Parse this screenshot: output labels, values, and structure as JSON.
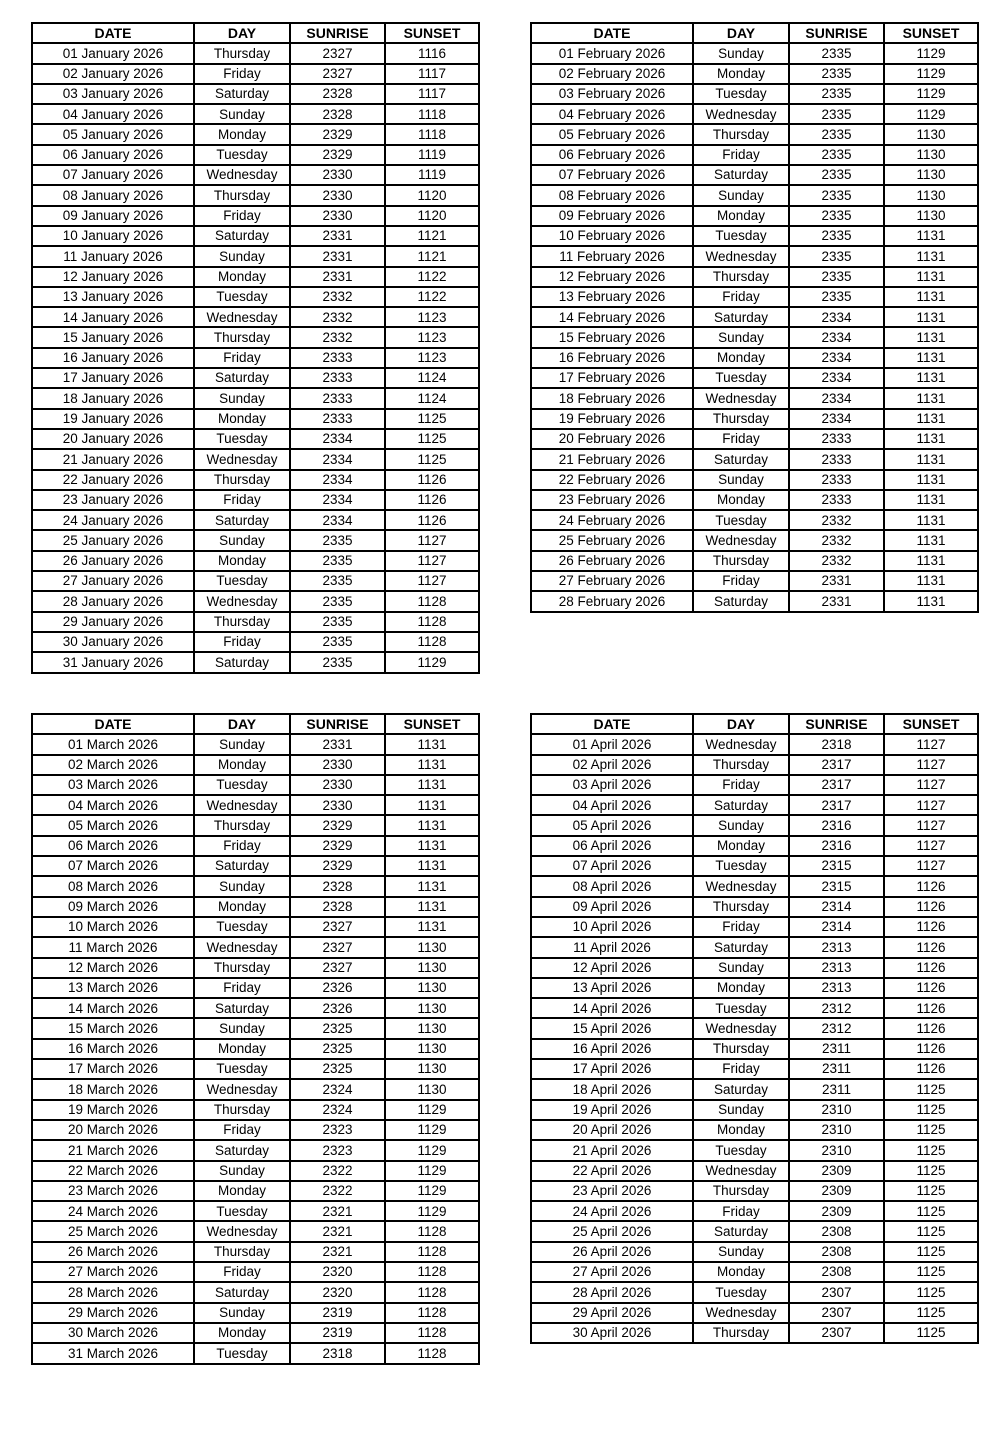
{
  "columns": [
    "DATE",
    "DAY",
    "SUNRISE",
    "SUNSET"
  ],
  "tables": [
    {
      "name": "january-2026",
      "rows": [
        [
          "01 January 2026",
          "Thursday",
          "2327",
          "1116"
        ],
        [
          "02 January 2026",
          "Friday",
          "2327",
          "1117"
        ],
        [
          "03 January 2026",
          "Saturday",
          "2328",
          "1117"
        ],
        [
          "04 January 2026",
          "Sunday",
          "2328",
          "1118"
        ],
        [
          "05 January 2026",
          "Monday",
          "2329",
          "1118"
        ],
        [
          "06 January 2026",
          "Tuesday",
          "2329",
          "1119"
        ],
        [
          "07 January 2026",
          "Wednesday",
          "2330",
          "1119"
        ],
        [
          "08 January 2026",
          "Thursday",
          "2330",
          "1120"
        ],
        [
          "09 January 2026",
          "Friday",
          "2330",
          "1120"
        ],
        [
          "10 January 2026",
          "Saturday",
          "2331",
          "1121"
        ],
        [
          "11 January 2026",
          "Sunday",
          "2331",
          "1121"
        ],
        [
          "12 January 2026",
          "Monday",
          "2331",
          "1122"
        ],
        [
          "13 January 2026",
          "Tuesday",
          "2332",
          "1122"
        ],
        [
          "14 January 2026",
          "Wednesday",
          "2332",
          "1123"
        ],
        [
          "15 January 2026",
          "Thursday",
          "2332",
          "1123"
        ],
        [
          "16 January 2026",
          "Friday",
          "2333",
          "1123"
        ],
        [
          "17 January 2026",
          "Saturday",
          "2333",
          "1124"
        ],
        [
          "18 January 2026",
          "Sunday",
          "2333",
          "1124"
        ],
        [
          "19 January 2026",
          "Monday",
          "2333",
          "1125"
        ],
        [
          "20 January 2026",
          "Tuesday",
          "2334",
          "1125"
        ],
        [
          "21 January 2026",
          "Wednesday",
          "2334",
          "1125"
        ],
        [
          "22 January 2026",
          "Thursday",
          "2334",
          "1126"
        ],
        [
          "23 January 2026",
          "Friday",
          "2334",
          "1126"
        ],
        [
          "24 January 2026",
          "Saturday",
          "2334",
          "1126"
        ],
        [
          "25 January 2026",
          "Sunday",
          "2335",
          "1127"
        ],
        [
          "26 January 2026",
          "Monday",
          "2335",
          "1127"
        ],
        [
          "27 January 2026",
          "Tuesday",
          "2335",
          "1127"
        ],
        [
          "28 January 2026",
          "Wednesday",
          "2335",
          "1128"
        ],
        [
          "29 January 2026",
          "Thursday",
          "2335",
          "1128"
        ],
        [
          "30 January 2026",
          "Friday",
          "2335",
          "1128"
        ],
        [
          "31 January 2026",
          "Saturday",
          "2335",
          "1129"
        ]
      ]
    },
    {
      "name": "february-2026",
      "rows": [
        [
          "01 February 2026",
          "Sunday",
          "2335",
          "1129"
        ],
        [
          "02 February 2026",
          "Monday",
          "2335",
          "1129"
        ],
        [
          "03 February 2026",
          "Tuesday",
          "2335",
          "1129"
        ],
        [
          "04 February 2026",
          "Wednesday",
          "2335",
          "1129"
        ],
        [
          "05 February 2026",
          "Thursday",
          "2335",
          "1130"
        ],
        [
          "06 February 2026",
          "Friday",
          "2335",
          "1130"
        ],
        [
          "07 February 2026",
          "Saturday",
          "2335",
          "1130"
        ],
        [
          "08 February 2026",
          "Sunday",
          "2335",
          "1130"
        ],
        [
          "09 February 2026",
          "Monday",
          "2335",
          "1130"
        ],
        [
          "10 February 2026",
          "Tuesday",
          "2335",
          "1131"
        ],
        [
          "11 February 2026",
          "Wednesday",
          "2335",
          "1131"
        ],
        [
          "12 February 2026",
          "Thursday",
          "2335",
          "1131"
        ],
        [
          "13 February 2026",
          "Friday",
          "2335",
          "1131"
        ],
        [
          "14 February 2026",
          "Saturday",
          "2334",
          "1131"
        ],
        [
          "15 February 2026",
          "Sunday",
          "2334",
          "1131"
        ],
        [
          "16 February 2026",
          "Monday",
          "2334",
          "1131"
        ],
        [
          "17 February 2026",
          "Tuesday",
          "2334",
          "1131"
        ],
        [
          "18 February 2026",
          "Wednesday",
          "2334",
          "1131"
        ],
        [
          "19 February 2026",
          "Thursday",
          "2334",
          "1131"
        ],
        [
          "20 February 2026",
          "Friday",
          "2333",
          "1131"
        ],
        [
          "21 February 2026",
          "Saturday",
          "2333",
          "1131"
        ],
        [
          "22 February 2026",
          "Sunday",
          "2333",
          "1131"
        ],
        [
          "23 February 2026",
          "Monday",
          "2333",
          "1131"
        ],
        [
          "24 February 2026",
          "Tuesday",
          "2332",
          "1131"
        ],
        [
          "25 February 2026",
          "Wednesday",
          "2332",
          "1131"
        ],
        [
          "26 February 2026",
          "Thursday",
          "2332",
          "1131"
        ],
        [
          "27 February 2026",
          "Friday",
          "2331",
          "1131"
        ],
        [
          "28 February 2026",
          "Saturday",
          "2331",
          "1131"
        ]
      ]
    },
    {
      "name": "march-2026",
      "rows": [
        [
          "01 March 2026",
          "Sunday",
          "2331",
          "1131"
        ],
        [
          "02 March 2026",
          "Monday",
          "2330",
          "1131"
        ],
        [
          "03 March 2026",
          "Tuesday",
          "2330",
          "1131"
        ],
        [
          "04 March 2026",
          "Wednesday",
          "2330",
          "1131"
        ],
        [
          "05 March 2026",
          "Thursday",
          "2329",
          "1131"
        ],
        [
          "06 March 2026",
          "Friday",
          "2329",
          "1131"
        ],
        [
          "07 March 2026",
          "Saturday",
          "2329",
          "1131"
        ],
        [
          "08 March 2026",
          "Sunday",
          "2328",
          "1131"
        ],
        [
          "09 March 2026",
          "Monday",
          "2328",
          "1131"
        ],
        [
          "10 March 2026",
          "Tuesday",
          "2327",
          "1131"
        ],
        [
          "11 March 2026",
          "Wednesday",
          "2327",
          "1130"
        ],
        [
          "12 March 2026",
          "Thursday",
          "2327",
          "1130"
        ],
        [
          "13 March 2026",
          "Friday",
          "2326",
          "1130"
        ],
        [
          "14 March 2026",
          "Saturday",
          "2326",
          "1130"
        ],
        [
          "15 March 2026",
          "Sunday",
          "2325",
          "1130"
        ],
        [
          "16 March 2026",
          "Monday",
          "2325",
          "1130"
        ],
        [
          "17 March 2026",
          "Tuesday",
          "2325",
          "1130"
        ],
        [
          "18 March 2026",
          "Wednesday",
          "2324",
          "1130"
        ],
        [
          "19 March 2026",
          "Thursday",
          "2324",
          "1129"
        ],
        [
          "20 March 2026",
          "Friday",
          "2323",
          "1129"
        ],
        [
          "21 March 2026",
          "Saturday",
          "2323",
          "1129"
        ],
        [
          "22 March 2026",
          "Sunday",
          "2322",
          "1129"
        ],
        [
          "23 March 2026",
          "Monday",
          "2322",
          "1129"
        ],
        [
          "24 March 2026",
          "Tuesday",
          "2321",
          "1129"
        ],
        [
          "25 March 2026",
          "Wednesday",
          "2321",
          "1128"
        ],
        [
          "26 March 2026",
          "Thursday",
          "2321",
          "1128"
        ],
        [
          "27 March 2026",
          "Friday",
          "2320",
          "1128"
        ],
        [
          "28 March 2026",
          "Saturday",
          "2320",
          "1128"
        ],
        [
          "29 March 2026",
          "Sunday",
          "2319",
          "1128"
        ],
        [
          "30 March 2026",
          "Monday",
          "2319",
          "1128"
        ],
        [
          "31 March 2026",
          "Tuesday",
          "2318",
          "1128"
        ]
      ]
    },
    {
      "name": "april-2026",
      "rows": [
        [
          "01 April 2026",
          "Wednesday",
          "2318",
          "1127"
        ],
        [
          "02 April 2026",
          "Thursday",
          "2317",
          "1127"
        ],
        [
          "03 April 2026",
          "Friday",
          "2317",
          "1127"
        ],
        [
          "04 April 2026",
          "Saturday",
          "2317",
          "1127"
        ],
        [
          "05 April 2026",
          "Sunday",
          "2316",
          "1127"
        ],
        [
          "06 April 2026",
          "Monday",
          "2316",
          "1127"
        ],
        [
          "07 April 2026",
          "Tuesday",
          "2315",
          "1127"
        ],
        [
          "08 April 2026",
          "Wednesday",
          "2315",
          "1126"
        ],
        [
          "09 April 2026",
          "Thursday",
          "2314",
          "1126"
        ],
        [
          "10 April 2026",
          "Friday",
          "2314",
          "1126"
        ],
        [
          "11 April 2026",
          "Saturday",
          "2313",
          "1126"
        ],
        [
          "12 April 2026",
          "Sunday",
          "2313",
          "1126"
        ],
        [
          "13 April 2026",
          "Monday",
          "2313",
          "1126"
        ],
        [
          "14 April 2026",
          "Tuesday",
          "2312",
          "1126"
        ],
        [
          "15 April 2026",
          "Wednesday",
          "2312",
          "1126"
        ],
        [
          "16 April 2026",
          "Thursday",
          "2311",
          "1126"
        ],
        [
          "17 April 2026",
          "Friday",
          "2311",
          "1126"
        ],
        [
          "18 April 2026",
          "Saturday",
          "2311",
          "1125"
        ],
        [
          "19 April 2026",
          "Sunday",
          "2310",
          "1125"
        ],
        [
          "20 April 2026",
          "Monday",
          "2310",
          "1125"
        ],
        [
          "21 April 2026",
          "Tuesday",
          "2310",
          "1125"
        ],
        [
          "22 April 2026",
          "Wednesday",
          "2309",
          "1125"
        ],
        [
          "23 April 2026",
          "Thursday",
          "2309",
          "1125"
        ],
        [
          "24 April 2026",
          "Friday",
          "2309",
          "1125"
        ],
        [
          "25 April 2026",
          "Saturday",
          "2308",
          "1125"
        ],
        [
          "26 April 2026",
          "Sunday",
          "2308",
          "1125"
        ],
        [
          "27 April 2026",
          "Monday",
          "2308",
          "1125"
        ],
        [
          "28 April 2026",
          "Tuesday",
          "2307",
          "1125"
        ],
        [
          "29 April 2026",
          "Wednesday",
          "2307",
          "1125"
        ],
        [
          "30 April 2026",
          "Thursday",
          "2307",
          "1125"
        ]
      ]
    }
  ],
  "colors": {
    "page_background": "#ffffff",
    "table_border": "#000000",
    "text": "#000000"
  }
}
